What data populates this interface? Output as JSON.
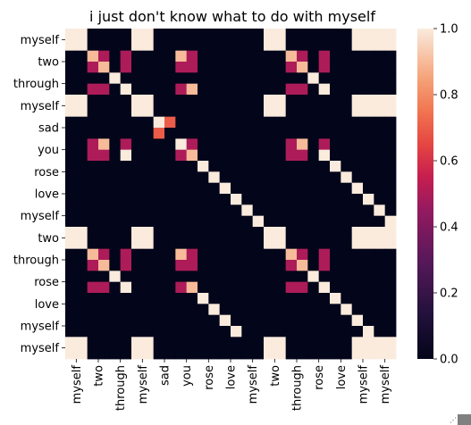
{
  "chart_data": {
    "type": "heatmap",
    "title": "i just don't know what to do with myself",
    "xlabel": "",
    "ylabel": "",
    "row_labels": [
      "myself",
      "two",
      "through",
      "myself",
      "sad",
      "you",
      "rose",
      "love",
      "myself",
      "two",
      "through",
      "rose",
      "love",
      "myself",
      "myself"
    ],
    "col_labels": [
      "myself",
      "two",
      "through",
      "myself",
      "sad",
      "you",
      "rose",
      "love",
      "myself",
      "two",
      "through",
      "rose",
      "love",
      "myself",
      "myself"
    ],
    "tick_labels_note": "labels shown on every second sub-cell column/row",
    "grid_size": 30,
    "colorbar": {
      "ticks": [
        1.0,
        0.8,
        0.6,
        0.4,
        0.2,
        0.0
      ],
      "tick_labels": [
        "1.0",
        "0.8",
        "0.6",
        "0.4",
        "0.2",
        "0.0"
      ],
      "range": [
        0,
        1
      ]
    },
    "colormap": "rocket",
    "values": [
      [
        1,
        1,
        0,
        0,
        0,
        0,
        1,
        1,
        0,
        0,
        0,
        0,
        0,
        0,
        0,
        0,
        0,
        0,
        1,
        1,
        0,
        0,
        0,
        0,
        0,
        0,
        1,
        1,
        1,
        1
      ],
      [
        1,
        1,
        0,
        0,
        0,
        0,
        1,
        1,
        0,
        0,
        0,
        0,
        0,
        0,
        0,
        0,
        0,
        0,
        1,
        1,
        0,
        0,
        0,
        0,
        0,
        0,
        1,
        1,
        1,
        1
      ],
      [
        0,
        0,
        0.9,
        0.5,
        0,
        0.5,
        0,
        0,
        0,
        0,
        0.9,
        0.5,
        0,
        0,
        0,
        0,
        0,
        0,
        0,
        0,
        0.9,
        0.5,
        0,
        0.5,
        0,
        0,
        0,
        0,
        0,
        0
      ],
      [
        0,
        0,
        0.5,
        0.9,
        0,
        0.5,
        0,
        0,
        0,
        0,
        0.5,
        0.5,
        0,
        0,
        0,
        0,
        0,
        0,
        0,
        0,
        0.5,
        0.9,
        0,
        0.5,
        0,
        0,
        0,
        0,
        0,
        0
      ],
      [
        0,
        0,
        0,
        0,
        1,
        0,
        0,
        0,
        0,
        0,
        0,
        0,
        0,
        0,
        0,
        0,
        0,
        0,
        0,
        0,
        0,
        0,
        1,
        0,
        0,
        0,
        0,
        0,
        0,
        0
      ],
      [
        0,
        0,
        0.5,
        0.5,
        0,
        1,
        0,
        0,
        0,
        0,
        0.5,
        0.9,
        0,
        0,
        0,
        0,
        0,
        0,
        0,
        0,
        0.5,
        0.5,
        0,
        1,
        0,
        0,
        0,
        0,
        0,
        0
      ],
      [
        1,
        1,
        0,
        0,
        0,
        0,
        1,
        1,
        0,
        0,
        0,
        0,
        0,
        0,
        0,
        0,
        0,
        0,
        1,
        1,
        0,
        0,
        0,
        0,
        0,
        0,
        1,
        1,
        1,
        1
      ],
      [
        1,
        1,
        0,
        0,
        0,
        0,
        1,
        1,
        0,
        0,
        0,
        0,
        0,
        0,
        0,
        0,
        0,
        0,
        1,
        1,
        0,
        0,
        0,
        0,
        0,
        0,
        1,
        1,
        1,
        1
      ],
      [
        0,
        0,
        0,
        0,
        0,
        0,
        0,
        0,
        1,
        0.7,
        0,
        0,
        0,
        0,
        0,
        0,
        0,
        0,
        0,
        0,
        0,
        0,
        0,
        0,
        0,
        0,
        0,
        0,
        0,
        0
      ],
      [
        0,
        0,
        0,
        0,
        0,
        0,
        0,
        0,
        0.7,
        0,
        0,
        0,
        0,
        0,
        0,
        0,
        0,
        0,
        0,
        0,
        0,
        0,
        0,
        0,
        0,
        0,
        0,
        0,
        0,
        0
      ],
      [
        0,
        0,
        0.5,
        0.9,
        0,
        0.5,
        0,
        0,
        0,
        0,
        1,
        0.5,
        0,
        0,
        0,
        0,
        0,
        0,
        0,
        0,
        0.5,
        0.9,
        0,
        0.5,
        0,
        0,
        0,
        0,
        0,
        0
      ],
      [
        0,
        0,
        0.5,
        0.5,
        0,
        1,
        0,
        0,
        0,
        0,
        0.5,
        0.9,
        0,
        0,
        0,
        0,
        0,
        0,
        0,
        0,
        0.5,
        0.5,
        0,
        1,
        0,
        0,
        0,
        0,
        0,
        0
      ],
      [
        0,
        0,
        0,
        0,
        0,
        0,
        0,
        0,
        0,
        0,
        0,
        0,
        1,
        0,
        0,
        0,
        0,
        0,
        0,
        0,
        0,
        0,
        0,
        0,
        1,
        0,
        0,
        0,
        0,
        0
      ],
      [
        0,
        0,
        0,
        0,
        0,
        0,
        0,
        0,
        0,
        0,
        0,
        0,
        0,
        1,
        0,
        0,
        0,
        0,
        0,
        0,
        0,
        0,
        0,
        0,
        0,
        1,
        0,
        0,
        0,
        0
      ],
      [
        0,
        0,
        0,
        0,
        0,
        0,
        0,
        0,
        0,
        0,
        0,
        0,
        0,
        0,
        1,
        0,
        0,
        0,
        0,
        0,
        0,
        0,
        0,
        0,
        0,
        0,
        1,
        0,
        0,
        0
      ],
      [
        0,
        0,
        0,
        0,
        0,
        0,
        0,
        0,
        0,
        0,
        0,
        0,
        0,
        0,
        0,
        1,
        0,
        0,
        0,
        0,
        0,
        0,
        0,
        0,
        0,
        0,
        0,
        1,
        0,
        0
      ],
      [
        0,
        0,
        0,
        0,
        0,
        0,
        0,
        0,
        0,
        0,
        0,
        0,
        0,
        0,
        0,
        0,
        1,
        0,
        0,
        0,
        0,
        0,
        0,
        0,
        0,
        0,
        0,
        0,
        1,
        0
      ],
      [
        0,
        0,
        0,
        0,
        0,
        0,
        0,
        0,
        0,
        0,
        0,
        0,
        0,
        0,
        0,
        0,
        0,
        1,
        0,
        0,
        0,
        0,
        0,
        0,
        0,
        0,
        0,
        0,
        0,
        1
      ],
      [
        1,
        1,
        0,
        0,
        0,
        0,
        1,
        1,
        0,
        0,
        0,
        0,
        0,
        0,
        0,
        0,
        0,
        0,
        1,
        1,
        0,
        0,
        0,
        0,
        0,
        0,
        1,
        1,
        1,
        1
      ],
      [
        1,
        1,
        0,
        0,
        0,
        0,
        1,
        1,
        0,
        0,
        0,
        0,
        0,
        0,
        0,
        0,
        0,
        0,
        1,
        1,
        0,
        0,
        0,
        0,
        0,
        0,
        1,
        1,
        1,
        1
      ],
      [
        0,
        0,
        0.9,
        0.5,
        0,
        0.5,
        0,
        0,
        0,
        0,
        0.9,
        0.5,
        0,
        0,
        0,
        0,
        0,
        0,
        0,
        0,
        0.9,
        0.5,
        0,
        0.5,
        0,
        0,
        0,
        0,
        0,
        0
      ],
      [
        0,
        0,
        0.5,
        0.9,
        0,
        0.5,
        0,
        0,
        0,
        0,
        0.5,
        0.5,
        0,
        0,
        0,
        0,
        0,
        0,
        0,
        0,
        0.5,
        0.9,
        0,
        0.5,
        0,
        0,
        0,
        0,
        0,
        0
      ],
      [
        0,
        0,
        0,
        0,
        1,
        0,
        0,
        0,
        0,
        0,
        0,
        0,
        0,
        0,
        0,
        0,
        0,
        0,
        0,
        0,
        0,
        0,
        1,
        0,
        0,
        0,
        0,
        0,
        0,
        0
      ],
      [
        0,
        0,
        0.5,
        0.5,
        0,
        1,
        0,
        0,
        0,
        0,
        0.5,
        0.9,
        0,
        0,
        0,
        0,
        0,
        0,
        0,
        0,
        0.5,
        0.5,
        0,
        1,
        0,
        0,
        0,
        0,
        0,
        0
      ],
      [
        0,
        0,
        0,
        0,
        0,
        0,
        0,
        0,
        0,
        0,
        0,
        0,
        1,
        0,
        0,
        0,
        0,
        0,
        0,
        0,
        0,
        0,
        0,
        0,
        1,
        0,
        0,
        0,
        0,
        0
      ],
      [
        0,
        0,
        0,
        0,
        0,
        0,
        0,
        0,
        0,
        0,
        0,
        0,
        0,
        1,
        0,
        0,
        0,
        0,
        0,
        0,
        0,
        0,
        0,
        0,
        0,
        1,
        0,
        0,
        0,
        0
      ],
      [
        0,
        0,
        0,
        0,
        0,
        0,
        0,
        0,
        0,
        0,
        0,
        0,
        0,
        0,
        1,
        0,
        0,
        0,
        0,
        0,
        0,
        0,
        0,
        0,
        0,
        0,
        1,
        0,
        0,
        0
      ],
      [
        0,
        0,
        0,
        0,
        0,
        0,
        0,
        0,
        0,
        0,
        0,
        0,
        0,
        0,
        0,
        1,
        0,
        0,
        0,
        0,
        0,
        0,
        0,
        0,
        0,
        0,
        0,
        1,
        0,
        0
      ],
      [
        1,
        1,
        0,
        0,
        0,
        0,
        1,
        1,
        0,
        0,
        0,
        0,
        0,
        0,
        0,
        0,
        0,
        0,
        1,
        1,
        0,
        0,
        0,
        0,
        0,
        0,
        1,
        1,
        1,
        1
      ],
      [
        1,
        1,
        0,
        0,
        0,
        0,
        1,
        1,
        0,
        0,
        0,
        0,
        0,
        0,
        0,
        0,
        0,
        0,
        1,
        1,
        0,
        0,
        0,
        0,
        0,
        0,
        1,
        1,
        1,
        1
      ]
    ]
  }
}
